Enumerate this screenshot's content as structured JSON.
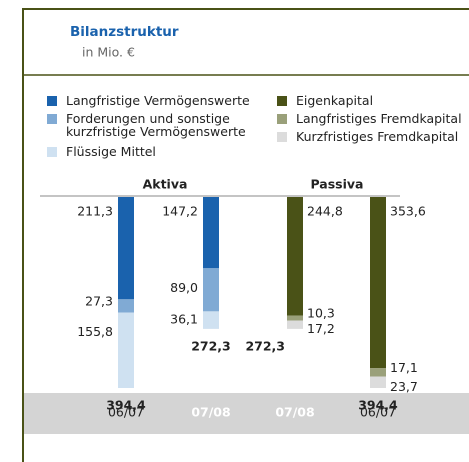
{
  "chart_data": {
    "type": "stacked_bar",
    "title": "Bilanzstruktur",
    "subtitle": "in Mio. €",
    "groups": [
      "Aktiva",
      "Passiva"
    ],
    "categories": [
      "06/07",
      "07/08",
      "07/08",
      "06/07"
    ],
    "series": [
      {
        "name": "Langfristige Vermögenswerte",
        "color": "#1a62ad",
        "values": [
          211.3,
          147.2,
          null,
          null
        ],
        "value_labels": [
          "211,3",
          "147,2",
          null,
          null
        ]
      },
      {
        "name": "Forderungen und sonstige\nkurzfristige Vermögenswerte",
        "color": "#80aad4",
        "values": [
          27.3,
          89.0,
          null,
          null
        ],
        "value_labels": [
          "27,3",
          "89,0",
          null,
          null
        ]
      },
      {
        "name": "Flüssige Mittel",
        "color": "#cfe1f1",
        "values": [
          155.8,
          36.1,
          null,
          null
        ],
        "value_labels": [
          "155,8",
          "36,1",
          null,
          null
        ]
      },
      {
        "name": "Eigenkapital",
        "color": "#4a5217",
        "values": [
          null,
          null,
          244.8,
          353.6
        ],
        "value_labels": [
          null,
          null,
          "244,8",
          "353,6"
        ]
      },
      {
        "name": "Langfristiges Fremdkapital",
        "color": "#9aa07a",
        "values": [
          null,
          null,
          10.3,
          17.1
        ],
        "value_labels": [
          null,
          null,
          "10,3",
          "17,1"
        ]
      },
      {
        "name": "Kurzfristiges Fremdkapital",
        "color": "#dcdcdc",
        "values": [
          null,
          null,
          17.2,
          23.7
        ],
        "value_labels": [
          null,
          null,
          "17,2",
          "23,7"
        ]
      }
    ],
    "totals": [
      394.4,
      272.3,
      272.3,
      394.4
    ],
    "total_labels": [
      "394,4",
      "272,3",
      "272,3",
      "394,4"
    ],
    "ylim": [
      0,
      394.4
    ]
  }
}
